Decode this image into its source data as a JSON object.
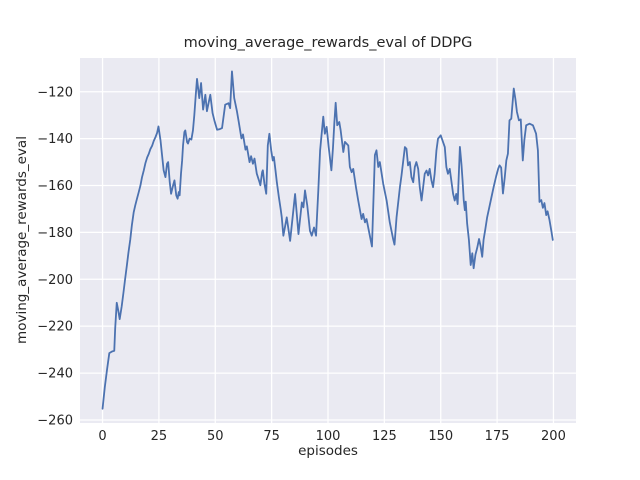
{
  "figure": {
    "title": "moving_average_rewards_eval of DDPG",
    "xlabel": "episodes",
    "ylabel": "moving_average_rewards_eval"
  },
  "chart_data": {
    "type": "line",
    "title": "moving_average_rewards_eval of DDPG",
    "xlabel": "episodes",
    "ylabel": "moving_average_rewards_eval",
    "style": "seaborn-darkgrid",
    "grid": true,
    "legend": "none",
    "xlim": [
      -10,
      210
    ],
    "ylim": [
      -261.3,
      -105.6
    ],
    "x_ticks": [
      0,
      25,
      50,
      75,
      100,
      125,
      150,
      175,
      200
    ],
    "y_ticks": [
      -260,
      -240,
      -220,
      -200,
      -180,
      -160,
      -140,
      -120
    ],
    "colors": {
      "line": "#4c72b0",
      "axes_background": "#eaeaf2",
      "grid": "#ffffff",
      "text": "#262626",
      "figure_background": "#ffffff"
    },
    "series": [
      {
        "name": "moving_average_rewards_eval",
        "points": [
          [
            0,
            -255.2
          ],
          [
            1,
            -246
          ],
          [
            2,
            -238.5
          ],
          [
            3,
            -231.5
          ],
          [
            4.2,
            -230.8
          ],
          [
            5.2,
            -230.5
          ],
          [
            5.6,
            -221
          ],
          [
            6.3,
            -210
          ],
          [
            7,
            -213.5
          ],
          [
            7.6,
            -217
          ],
          [
            8.5,
            -211.5
          ],
          [
            9.3,
            -205.5
          ],
          [
            10,
            -200
          ],
          [
            10.8,
            -194
          ],
          [
            11.5,
            -188.5
          ],
          [
            12.3,
            -183
          ],
          [
            13,
            -177
          ],
          [
            13.8,
            -171.5
          ],
          [
            14.5,
            -168.5
          ],
          [
            15.3,
            -165.5
          ],
          [
            16,
            -163
          ],
          [
            16.8,
            -160
          ],
          [
            17.5,
            -156.5
          ],
          [
            18.3,
            -153.5
          ],
          [
            19,
            -150.5
          ],
          [
            19.8,
            -148
          ],
          [
            20.5,
            -146.5
          ],
          [
            21.2,
            -144.5
          ],
          [
            22,
            -143
          ],
          [
            22.7,
            -141
          ],
          [
            23.5,
            -139.3
          ],
          [
            24.2,
            -137.5
          ],
          [
            24.8,
            -134.8
          ],
          [
            25.7,
            -140.7
          ],
          [
            26.4,
            -147.1
          ],
          [
            27.1,
            -153.5
          ],
          [
            27.9,
            -156.4
          ],
          [
            28.6,
            -150.7
          ],
          [
            29.1,
            -150
          ],
          [
            29.8,
            -158.5
          ],
          [
            30.4,
            -163.5
          ],
          [
            31.3,
            -159.9
          ],
          [
            31.9,
            -157.8
          ],
          [
            32.7,
            -164.2
          ],
          [
            33.3,
            -165.6
          ],
          [
            33.8,
            -162.8
          ],
          [
            34.2,
            -164.2
          ],
          [
            34.8,
            -154.9
          ],
          [
            35.3,
            -149.3
          ],
          [
            35.7,
            -142.9
          ],
          [
            36.3,
            -137.2
          ],
          [
            36.7,
            -136.5
          ],
          [
            37.5,
            -141.5
          ],
          [
            37.9,
            -142.1
          ],
          [
            38.6,
            -140
          ],
          [
            39.4,
            -140.4
          ],
          [
            40.1,
            -136.5
          ],
          [
            40.7,
            -130
          ],
          [
            41.3,
            -122
          ],
          [
            41.9,
            -114.5
          ],
          [
            42.9,
            -122.7
          ],
          [
            43.7,
            -116.3
          ],
          [
            44.6,
            -127.6
          ],
          [
            45.6,
            -121.3
          ],
          [
            46.3,
            -128.3
          ],
          [
            47.1,
            -124.5
          ],
          [
            47.8,
            -121.3
          ],
          [
            48.8,
            -129.1
          ],
          [
            49.7,
            -132.6
          ],
          [
            50.8,
            -136.2
          ],
          [
            51.8,
            -136
          ],
          [
            53,
            -135.5
          ],
          [
            54.4,
            -125.5
          ],
          [
            55.9,
            -124.9
          ],
          [
            56.6,
            -127
          ],
          [
            57.4,
            -111.3
          ],
          [
            58.4,
            -122.7
          ],
          [
            59.6,
            -128.3
          ],
          [
            60.4,
            -132.8
          ],
          [
            61.6,
            -139.9
          ],
          [
            62.3,
            -138.2
          ],
          [
            63.4,
            -144.7
          ],
          [
            64,
            -143.3
          ],
          [
            65.2,
            -150
          ],
          [
            65.9,
            -147.5
          ],
          [
            66.7,
            -150.7
          ],
          [
            67.4,
            -148.5
          ],
          [
            68.4,
            -154.9
          ],
          [
            69.6,
            -158.5
          ],
          [
            70,
            -159.9
          ],
          [
            70.8,
            -154.2
          ],
          [
            71.1,
            -153.5
          ],
          [
            71.8,
            -159.2
          ],
          [
            72.6,
            -163.5
          ],
          [
            73.3,
            -142.9
          ],
          [
            74,
            -137.9
          ],
          [
            74.8,
            -145
          ],
          [
            75.5,
            -149.3
          ],
          [
            76,
            -147.8
          ],
          [
            76.7,
            -153.5
          ],
          [
            77.3,
            -158.5
          ],
          [
            78.2,
            -164.9
          ],
          [
            79,
            -170
          ],
          [
            79.5,
            -173.6
          ],
          [
            80.2,
            -181.4
          ],
          [
            81.7,
            -173.6
          ],
          [
            83.2,
            -183.6
          ],
          [
            85.4,
            -163.6
          ],
          [
            86.9,
            -180.7
          ],
          [
            88.4,
            -167.2
          ],
          [
            89.1,
            -169.3
          ],
          [
            89.8,
            -162.1
          ],
          [
            90.8,
            -168.5
          ],
          [
            92,
            -179.3
          ],
          [
            92.8,
            -181.4
          ],
          [
            93.8,
            -177.9
          ],
          [
            94.7,
            -181.4
          ],
          [
            95.7,
            -162.1
          ],
          [
            96.5,
            -145
          ],
          [
            97.9,
            -130.6
          ],
          [
            98.6,
            -137.9
          ],
          [
            99.4,
            -135
          ],
          [
            100.3,
            -143.6
          ],
          [
            101.5,
            -153.5
          ],
          [
            102.2,
            -144
          ],
          [
            102.8,
            -133.5
          ],
          [
            103.4,
            -124.7
          ],
          [
            104.1,
            -134.3
          ],
          [
            105,
            -132.9
          ],
          [
            105.6,
            -136.4
          ],
          [
            106.8,
            -145.7
          ],
          [
            107.5,
            -141.4
          ],
          [
            109,
            -142.9
          ],
          [
            109.7,
            -152.1
          ],
          [
            110.5,
            -154.3
          ],
          [
            111.2,
            -152.9
          ],
          [
            112.4,
            -160.7
          ],
          [
            113.4,
            -166.4
          ],
          [
            114.9,
            -174.3
          ],
          [
            115.6,
            -172.1
          ],
          [
            116.4,
            -175.7
          ],
          [
            117.1,
            -174.3
          ],
          [
            119.5,
            -186
          ],
          [
            120.8,
            -147
          ],
          [
            121.5,
            -145
          ],
          [
            122.3,
            -152.1
          ],
          [
            123,
            -150
          ],
          [
            124.5,
            -159.3
          ],
          [
            126,
            -166.4
          ],
          [
            127.4,
            -175.7
          ],
          [
            128.9,
            -182.9
          ],
          [
            129.5,
            -185.2
          ],
          [
            130.4,
            -173.6
          ],
          [
            131.9,
            -160.7
          ],
          [
            132.6,
            -155.7
          ],
          [
            134.1,
            -143.6
          ],
          [
            134.8,
            -144.3
          ],
          [
            135.5,
            -151.4
          ],
          [
            136.3,
            -150
          ],
          [
            137,
            -156.4
          ],
          [
            137.8,
            -158.6
          ],
          [
            138.5,
            -152.1
          ],
          [
            139.2,
            -150
          ],
          [
            140,
            -152.9
          ],
          [
            140.7,
            -160.7
          ],
          [
            141.5,
            -166.4
          ],
          [
            142.2,
            -160.7
          ],
          [
            142.9,
            -155
          ],
          [
            143.7,
            -153.6
          ],
          [
            144.4,
            -155.7
          ],
          [
            145.1,
            -152.9
          ],
          [
            145.9,
            -157.9
          ],
          [
            146.6,
            -160.7
          ],
          [
            147.3,
            -155
          ],
          [
            148.1,
            -145
          ],
          [
            148.8,
            -140
          ],
          [
            150,
            -138.6
          ],
          [
            151.8,
            -143.6
          ],
          [
            152.5,
            -152.1
          ],
          [
            153.2,
            -155
          ],
          [
            154,
            -152.9
          ],
          [
            155.5,
            -163.6
          ],
          [
            156.2,
            -166.4
          ],
          [
            156.9,
            -163.6
          ],
          [
            157.5,
            -167.9
          ],
          [
            158.5,
            -143.5
          ],
          [
            159.2,
            -151
          ],
          [
            159.7,
            -158
          ],
          [
            160.2,
            -166.2
          ],
          [
            160.7,
            -170.5
          ],
          [
            161.1,
            -166.9
          ],
          [
            161.7,
            -176.1
          ],
          [
            162.5,
            -183.2
          ],
          [
            163.3,
            -193.9
          ],
          [
            164,
            -188.9
          ],
          [
            164.6,
            -195.3
          ],
          [
            165.4,
            -189.5
          ],
          [
            166.2,
            -186.5
          ],
          [
            167,
            -182.8
          ],
          [
            167.7,
            -186
          ],
          [
            168.4,
            -190.4
          ],
          [
            169,
            -183.2
          ],
          [
            169.8,
            -178.5
          ],
          [
            170.6,
            -173.5
          ],
          [
            171.5,
            -169.5
          ],
          [
            172.5,
            -165
          ],
          [
            173.5,
            -160.5
          ],
          [
            174.6,
            -156
          ],
          [
            175.5,
            -152.8
          ],
          [
            176.1,
            -151.4
          ],
          [
            176.8,
            -152.3
          ],
          [
            177.6,
            -163.4
          ],
          [
            178.4,
            -156.5
          ],
          [
            179.1,
            -149.3
          ],
          [
            179.8,
            -146.4
          ],
          [
            180.5,
            -132.2
          ],
          [
            181.3,
            -131.5
          ],
          [
            182.4,
            -118.6
          ],
          [
            183.1,
            -123
          ],
          [
            183.8,
            -128.6
          ],
          [
            184.7,
            -132.2
          ],
          [
            185.5,
            -131.8
          ],
          [
            186.4,
            -149.3
          ],
          [
            187.1,
            -140.5
          ],
          [
            187.9,
            -134.3
          ],
          [
            189.4,
            -133.6
          ],
          [
            190.9,
            -134.3
          ],
          [
            192.3,
            -137.9
          ],
          [
            193.1,
            -145
          ],
          [
            193.8,
            -167
          ],
          [
            194.6,
            -166.2
          ],
          [
            195.3,
            -169.5
          ],
          [
            196,
            -167.5
          ],
          [
            196.8,
            -172.6
          ],
          [
            197.4,
            -171
          ],
          [
            198.2,
            -174.5
          ],
          [
            199,
            -179
          ],
          [
            199.7,
            -183.2
          ]
        ]
      }
    ]
  }
}
